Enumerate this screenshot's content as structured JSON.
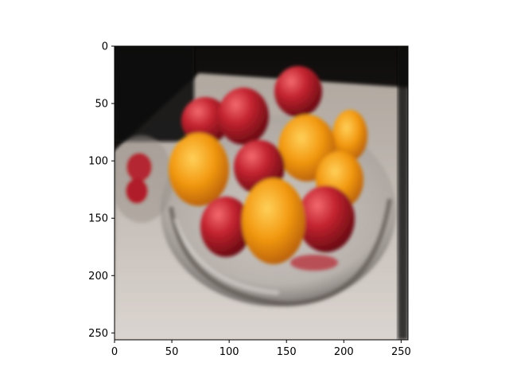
{
  "figure": {
    "image_width": 256,
    "image_height": 256,
    "x_ticks": [
      "0",
      "50",
      "100",
      "150",
      "200",
      "250"
    ],
    "y_ticks": [
      "0",
      "50",
      "100",
      "150",
      "200",
      "250"
    ],
    "x_tick_values": [
      0,
      50,
      100,
      150,
      200,
      250
    ],
    "y_tick_values": [
      0,
      50,
      100,
      150,
      200,
      250
    ],
    "y_axis_inverted": true
  },
  "photo": {
    "subject_icons": [
      "glass-bowl-icon",
      "apple-icon",
      "orange-icon"
    ],
    "colors": {
      "background_dark": "#141110",
      "table_cloth": "#cfc9c4",
      "apple_red": "#b51e2a",
      "orange": "#f0960f",
      "bowl_glass": "#a9a4a0"
    }
  }
}
